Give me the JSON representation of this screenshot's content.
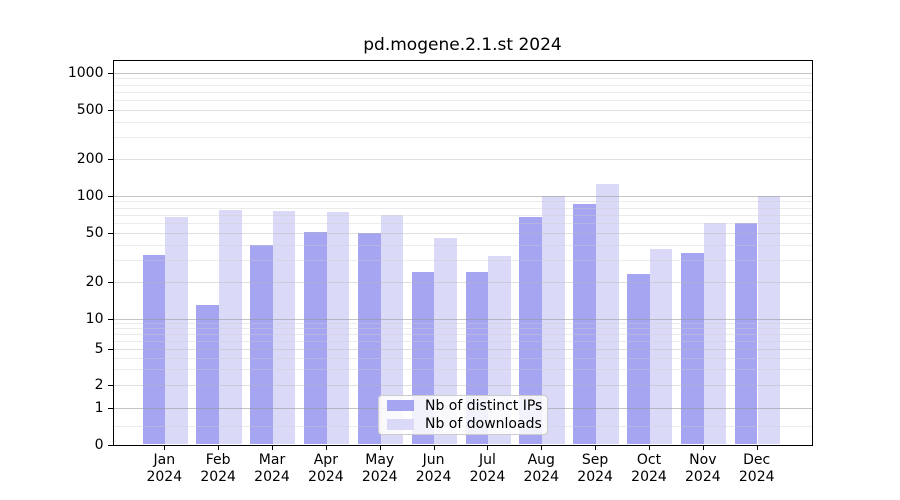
{
  "chart_data": {
    "type": "bar",
    "title": "pd.mogene.2.1.st 2024",
    "categories": [
      "Jan 2024",
      "Feb 2024",
      "Mar 2024",
      "Apr 2024",
      "May 2024",
      "Jun 2024",
      "Jul 2024",
      "Aug 2024",
      "Sep 2024",
      "Oct 2024",
      "Nov 2024",
      "Dec 2024"
    ],
    "series": [
      {
        "name": "Nb of distinct IPs",
        "values": [
          33,
          13,
          40,
          51,
          50,
          24,
          24,
          67,
          85,
          23,
          34,
          60
        ]
      },
      {
        "name": "Nb of downloads",
        "values": [
          67,
          77,
          75,
          73,
          70,
          45,
          32,
          100,
          124,
          37,
          60,
          99
        ]
      }
    ],
    "xlabel": "",
    "ylabel": "",
    "y_scale": "log-like (0,1,2,5,10,20,50,100,200,500,1000)",
    "ylim": [
      0,
      1000
    ],
    "grid": "horizontal, drawn over bars",
    "legend_position": "lower center"
  },
  "x_axis": {
    "months": [
      "Jan",
      "Feb",
      "Mar",
      "Apr",
      "May",
      "Jun",
      "Jul",
      "Aug",
      "Sep",
      "Oct",
      "Nov",
      "Dec"
    ],
    "year": "2024"
  },
  "y_axis": {
    "tick_labels": [
      "0",
      "1",
      "2",
      "5",
      "10",
      "20",
      "50",
      "100",
      "200",
      "500",
      "1000"
    ]
  },
  "legend": {
    "items": [
      {
        "label": "Nb of distinct IPs",
        "color": "#a5a5f2"
      },
      {
        "label": "Nb of downloads",
        "color": "#dadaf8"
      }
    ]
  },
  "colors": {
    "bar_distinct_ips": "#a5a5f2",
    "bar_downloads": "#dadaf8",
    "grid_major": "rgba(150,150,150,0.55)",
    "grid_labeled": "rgba(185,185,185,0.45)",
    "grid_minor": "rgba(205,205,205,0.40)",
    "axis": "#000000",
    "background": "#ffffff"
  }
}
